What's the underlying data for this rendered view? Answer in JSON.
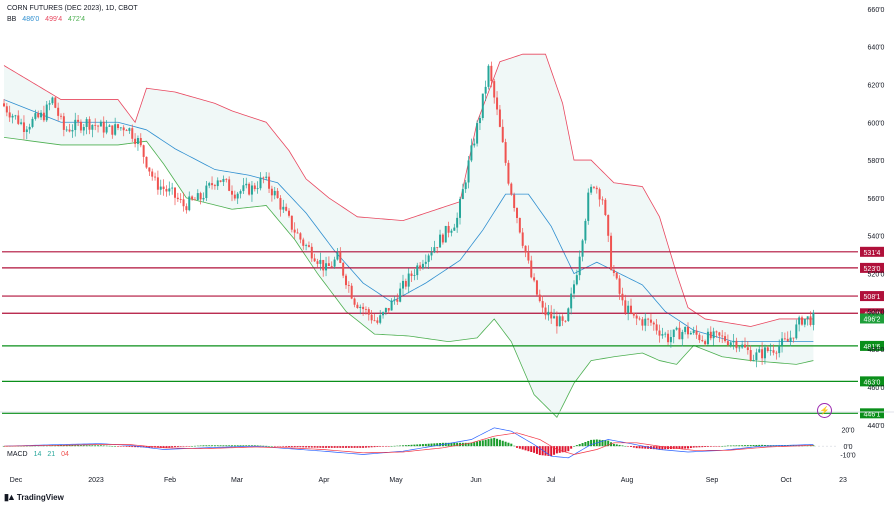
{
  "header": {
    "title": "CORN FUTURES (DEC 2023), 1D, CBOT",
    "bb_label": "BB",
    "bb_values": [
      "486'0",
      "499'4",
      "472'4"
    ],
    "macd_label": "MACD",
    "macd_values": [
      "14",
      "21",
      "04"
    ]
  },
  "brand": {
    "name": "TradingView"
  },
  "colors": {
    "up": "#26a69a",
    "down": "#ef5350",
    "bb_upper": "#e8475f",
    "bb_lower": "#4caf50",
    "bb_basis": "#2f8fd0",
    "resistance": "#b0103a",
    "support": "#0a8f1a",
    "last_price": "#1e9e3a",
    "macd_line": "#2962ff",
    "signal_line": "#f23645"
  },
  "chart_data": {
    "type": "candlestick",
    "y_axis": {
      "ticks": [
        "440'0",
        "460'0",
        "480'0",
        "500'0",
        "520'0",
        "540'0",
        "560'0",
        "580'0",
        "600'0",
        "620'0",
        "640'0",
        "660'0"
      ],
      "range": [
        432,
        662
      ]
    },
    "x_axis": {
      "labels": [
        "Dec",
        "2023",
        "Feb",
        "Mar",
        "Apr",
        "May",
        "Jun",
        "Jul",
        "Aug",
        "Sep",
        "Oct",
        "23"
      ]
    },
    "horizontal_levels": [
      {
        "label": "531'4",
        "value": 531.5,
        "kind": "resistance"
      },
      {
        "label": "523'0",
        "value": 523,
        "kind": "resistance"
      },
      {
        "label": "508'1",
        "value": 508.1,
        "kind": "resistance"
      },
      {
        "label": "499'0",
        "value": 499,
        "kind": "resistance"
      },
      {
        "label": "481'6",
        "value": 481.75,
        "kind": "support"
      },
      {
        "label": "463'0",
        "value": 463,
        "kind": "support"
      },
      {
        "label": "446'1",
        "value": 446.1,
        "kind": "support"
      }
    ],
    "last_price": {
      "label": "496'2",
      "value": 496.25
    },
    "price_keypoints": [
      [
        0,
        610
      ],
      [
        8,
        598
      ],
      [
        15,
        604
      ],
      [
        18,
        612
      ],
      [
        22,
        596
      ],
      [
        30,
        600
      ],
      [
        38,
        596
      ],
      [
        44,
        598
      ],
      [
        48,
        590
      ],
      [
        54,
        568
      ],
      [
        60,
        562
      ],
      [
        64,
        556
      ],
      [
        70,
        560
      ],
      [
        76,
        571
      ],
      [
        82,
        563
      ],
      [
        88,
        565
      ],
      [
        92,
        570
      ],
      [
        96,
        562
      ],
      [
        102,
        545
      ],
      [
        106,
        536
      ],
      [
        110,
        530
      ],
      [
        114,
        522
      ],
      [
        118,
        528
      ],
      [
        124,
        506
      ],
      [
        128,
        500
      ],
      [
        132,
        494
      ],
      [
        136,
        502
      ],
      [
        142,
        515
      ],
      [
        148,
        528
      ],
      [
        154,
        538
      ],
      [
        160,
        549
      ],
      [
        164,
        578
      ],
      [
        168,
        604
      ],
      [
        171,
        628
      ],
      [
        174,
        605
      ],
      [
        178,
        570
      ],
      [
        182,
        544
      ],
      [
        186,
        518
      ],
      [
        190,
        500
      ],
      [
        194,
        496
      ],
      [
        198,
        492
      ],
      [
        202,
        522
      ],
      [
        206,
        560
      ],
      [
        208,
        568
      ],
      [
        211,
        560
      ],
      [
        214,
        525
      ],
      [
        218,
        504
      ],
      [
        222,
        496
      ],
      [
        228,
        494
      ],
      [
        234,
        486
      ],
      [
        240,
        490
      ],
      [
        246,
        486
      ],
      [
        252,
        486
      ],
      [
        258,
        484
      ],
      [
        264,
        476
      ],
      [
        270,
        480
      ],
      [
        276,
        484
      ],
      [
        281,
        496
      ],
      [
        284,
        496
      ]
    ],
    "bb_upper_keypoints": [
      [
        0,
        630
      ],
      [
        20,
        612
      ],
      [
        40,
        612
      ],
      [
        46,
        600
      ],
      [
        50,
        618
      ],
      [
        60,
        616
      ],
      [
        74,
        610
      ],
      [
        80,
        606
      ],
      [
        92,
        600
      ],
      [
        100,
        585
      ],
      [
        106,
        570
      ],
      [
        114,
        560
      ],
      [
        124,
        550
      ],
      [
        140,
        548
      ],
      [
        160,
        558
      ],
      [
        166,
        600
      ],
      [
        174,
        632
      ],
      [
        182,
        636
      ],
      [
        190,
        636
      ],
      [
        196,
        610
      ],
      [
        200,
        580
      ],
      [
        206,
        580
      ],
      [
        214,
        568
      ],
      [
        224,
        566
      ],
      [
        230,
        550
      ],
      [
        236,
        520
      ],
      [
        240,
        502
      ],
      [
        246,
        496
      ],
      [
        262,
        492
      ],
      [
        272,
        496
      ],
      [
        284,
        496
      ]
    ],
    "bb_lower_keypoints": [
      [
        0,
        592
      ],
      [
        20,
        588
      ],
      [
        40,
        588
      ],
      [
        50,
        590
      ],
      [
        56,
        578
      ],
      [
        64,
        560
      ],
      [
        80,
        554
      ],
      [
        92,
        556
      ],
      [
        102,
        538
      ],
      [
        110,
        520
      ],
      [
        120,
        500
      ],
      [
        130,
        488
      ],
      [
        142,
        487
      ],
      [
        156,
        484
      ],
      [
        166,
        486
      ],
      [
        172,
        496
      ],
      [
        178,
        484
      ],
      [
        186,
        456
      ],
      [
        194,
        444
      ],
      [
        200,
        462
      ],
      [
        206,
        474
      ],
      [
        214,
        476
      ],
      [
        224,
        478
      ],
      [
        230,
        474
      ],
      [
        236,
        472
      ],
      [
        242,
        482
      ],
      [
        252,
        476
      ],
      [
        262,
        474
      ],
      [
        278,
        472
      ],
      [
        284,
        474
      ]
    ],
    "bb_basis_keypoints": [
      [
        0,
        612
      ],
      [
        20,
        600
      ],
      [
        40,
        600
      ],
      [
        50,
        596
      ],
      [
        60,
        586
      ],
      [
        74,
        575
      ],
      [
        86,
        572
      ],
      [
        96,
        568
      ],
      [
        106,
        552
      ],
      [
        116,
        532
      ],
      [
        126,
        515
      ],
      [
        136,
        505
      ],
      [
        148,
        515
      ],
      [
        160,
        527
      ],
      [
        168,
        543
      ],
      [
        176,
        562
      ],
      [
        184,
        562
      ],
      [
        192,
        545
      ],
      [
        200,
        520
      ],
      [
        208,
        526
      ],
      [
        216,
        520
      ],
      [
        224,
        514
      ],
      [
        232,
        500
      ],
      [
        242,
        490
      ],
      [
        256,
        484
      ],
      [
        270,
        484
      ],
      [
        284,
        484
      ]
    ],
    "macd": {
      "y_ticks": [
        "20'0",
        "0'0",
        "-10'0"
      ],
      "range": [
        -19,
        29
      ],
      "macd_keypoints": [
        [
          0,
          0
        ],
        [
          20,
          2
        ],
        [
          34,
          3
        ],
        [
          44,
          1
        ],
        [
          56,
          -4
        ],
        [
          70,
          -2
        ],
        [
          88,
          0
        ],
        [
          100,
          -3
        ],
        [
          112,
          -6
        ],
        [
          126,
          -10
        ],
        [
          140,
          -6
        ],
        [
          154,
          2
        ],
        [
          164,
          8
        ],
        [
          172,
          22
        ],
        [
          178,
          18
        ],
        [
          186,
          2
        ],
        [
          192,
          -12
        ],
        [
          198,
          -14
        ],
        [
          206,
          2
        ],
        [
          212,
          8
        ],
        [
          220,
          3
        ],
        [
          230,
          -4
        ],
        [
          240,
          -7
        ],
        [
          252,
          -5
        ],
        [
          266,
          0
        ],
        [
          284,
          2
        ]
      ],
      "signal_keypoints": [
        [
          0,
          0
        ],
        [
          20,
          1
        ],
        [
          34,
          2
        ],
        [
          44,
          2
        ],
        [
          56,
          -2
        ],
        [
          70,
          -3
        ],
        [
          88,
          -1
        ],
        [
          100,
          -2
        ],
        [
          112,
          -4
        ],
        [
          126,
          -8
        ],
        [
          140,
          -7
        ],
        [
          154,
          -2
        ],
        [
          164,
          4
        ],
        [
          172,
          12
        ],
        [
          180,
          16
        ],
        [
          188,
          8
        ],
        [
          194,
          -4
        ],
        [
          200,
          -10
        ],
        [
          208,
          -4
        ],
        [
          214,
          4
        ],
        [
          222,
          4
        ],
        [
          232,
          -1
        ],
        [
          242,
          -5
        ],
        [
          254,
          -5
        ],
        [
          268,
          -1
        ],
        [
          284,
          1
        ]
      ]
    },
    "grid": false,
    "legend": "top-left"
  }
}
